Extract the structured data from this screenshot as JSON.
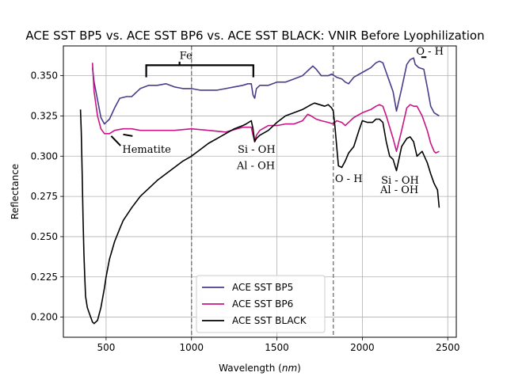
{
  "chart_data": {
    "type": "line",
    "title": "ACE SST BP5 vs. ACE SST BP6 vs. ACE SST BLACK: VNIR Before Lyophilization",
    "xlabel": "Wavelength",
    "xlabel_unit": "nm",
    "ylabel": "Reflectance",
    "xlim": [
      250,
      2550
    ],
    "ylim": [
      0.1875,
      0.3685
    ],
    "xticks": [
      500,
      1000,
      1500,
      2000,
      2500
    ],
    "yticks": [
      0.2,
      0.225,
      0.25,
      0.275,
      0.3,
      0.325,
      0.35
    ],
    "xtick_labels": [
      "500",
      "1000",
      "1500",
      "2000",
      "2500"
    ],
    "ytick_labels": [
      "0.200",
      "0.225",
      "0.250",
      "0.275",
      "0.300",
      "0.325",
      "0.350"
    ],
    "grid": true,
    "legend_position": "lower center",
    "vlines": [
      1000,
      1830
    ],
    "series": [
      {
        "name": "ACE SST BP5",
        "color": "#483d8b",
        "x": [
          420,
          430,
          450,
          470,
          490,
          520,
          550,
          580,
          620,
          650,
          700,
          750,
          800,
          850,
          900,
          950,
          1000,
          1050,
          1100,
          1150,
          1200,
          1250,
          1300,
          1330,
          1350,
          1360,
          1370,
          1380,
          1400,
          1450,
          1500,
          1550,
          1600,
          1650,
          1690,
          1710,
          1730,
          1760,
          1800,
          1820,
          1850,
          1880,
          1900,
          1920,
          1950,
          2000,
          2050,
          2080,
          2100,
          2120,
          2140,
          2160,
          2180,
          2200,
          2230,
          2260,
          2280,
          2300,
          2310,
          2330,
          2360,
          2380,
          2400,
          2420,
          2450
        ],
        "y": [
          0.355,
          0.346,
          0.335,
          0.324,
          0.32,
          0.323,
          0.33,
          0.336,
          0.337,
          0.337,
          0.342,
          0.344,
          0.344,
          0.345,
          0.343,
          0.342,
          0.342,
          0.341,
          0.341,
          0.341,
          0.342,
          0.343,
          0.344,
          0.345,
          0.345,
          0.338,
          0.336,
          0.342,
          0.344,
          0.344,
          0.346,
          0.346,
          0.348,
          0.35,
          0.354,
          0.356,
          0.354,
          0.35,
          0.35,
          0.351,
          0.349,
          0.348,
          0.346,
          0.345,
          0.349,
          0.352,
          0.355,
          0.358,
          0.359,
          0.358,
          0.352,
          0.346,
          0.34,
          0.328,
          0.342,
          0.357,
          0.36,
          0.361,
          0.357,
          0.355,
          0.354,
          0.343,
          0.331,
          0.327,
          0.325
        ]
      },
      {
        "name": "ACE SST BP6",
        "color": "#c71585",
        "x": [
          420,
          430,
          450,
          470,
          490,
          500,
          520,
          550,
          600,
          650,
          700,
          800,
          900,
          1000,
          1100,
          1200,
          1300,
          1350,
          1360,
          1370,
          1380,
          1400,
          1450,
          1500,
          1550,
          1600,
          1650,
          1680,
          1700,
          1730,
          1760,
          1800,
          1830,
          1850,
          1880,
          1900,
          1920,
          1950,
          2000,
          2050,
          2080,
          2100,
          2120,
          2140,
          2160,
          2180,
          2200,
          2230,
          2260,
          2280,
          2300,
          2320,
          2350,
          2380,
          2400,
          2420,
          2430,
          2450
        ],
        "y": [
          0.358,
          0.34,
          0.325,
          0.317,
          0.314,
          0.314,
          0.314,
          0.316,
          0.317,
          0.317,
          0.316,
          0.316,
          0.316,
          0.317,
          0.316,
          0.315,
          0.318,
          0.318,
          0.313,
          0.309,
          0.313,
          0.316,
          0.319,
          0.319,
          0.32,
          0.32,
          0.322,
          0.326,
          0.325,
          0.323,
          0.322,
          0.321,
          0.32,
          0.322,
          0.321,
          0.319,
          0.321,
          0.324,
          0.327,
          0.329,
          0.331,
          0.332,
          0.331,
          0.325,
          0.318,
          0.311,
          0.303,
          0.316,
          0.33,
          0.332,
          0.331,
          0.331,
          0.325,
          0.316,
          0.308,
          0.303,
          0.302,
          0.303
        ]
      },
      {
        "name": "ACE SST BLACK",
        "color": "#000000",
        "x": [
          350,
          355,
          360,
          365,
          370,
          375,
          380,
          390,
          400,
          410,
          420,
          430,
          450,
          470,
          490,
          500,
          520,
          550,
          580,
          600,
          650,
          700,
          750,
          800,
          850,
          900,
          950,
          1000,
          1050,
          1100,
          1150,
          1200,
          1250,
          1300,
          1320,
          1350,
          1360,
          1370,
          1380,
          1400,
          1450,
          1500,
          1550,
          1600,
          1650,
          1700,
          1720,
          1750,
          1780,
          1800,
          1820,
          1830,
          1840,
          1860,
          1880,
          1900,
          1920,
          1950,
          1980,
          2000,
          2030,
          2060,
          2080,
          2100,
          2120,
          2140,
          2160,
          2180,
          2200,
          2230,
          2260,
          2280,
          2300,
          2320,
          2350,
          2380,
          2400,
          2420,
          2440,
          2450
        ],
        "y": [
          0.329,
          0.315,
          0.29,
          0.262,
          0.24,
          0.225,
          0.213,
          0.206,
          0.203,
          0.2,
          0.197,
          0.196,
          0.198,
          0.206,
          0.218,
          0.225,
          0.236,
          0.247,
          0.255,
          0.26,
          0.268,
          0.275,
          0.28,
          0.285,
          0.289,
          0.293,
          0.297,
          0.3,
          0.304,
          0.308,
          0.311,
          0.314,
          0.317,
          0.319,
          0.32,
          0.322,
          0.317,
          0.309,
          0.311,
          0.313,
          0.316,
          0.321,
          0.325,
          0.327,
          0.329,
          0.332,
          0.333,
          0.332,
          0.331,
          0.332,
          0.33,
          0.328,
          0.318,
          0.294,
          0.293,
          0.297,
          0.302,
          0.306,
          0.316,
          0.322,
          0.321,
          0.321,
          0.323,
          0.323,
          0.321,
          0.309,
          0.3,
          0.298,
          0.291,
          0.306,
          0.311,
          0.312,
          0.309,
          0.3,
          0.303,
          0.296,
          0.289,
          0.283,
          0.279,
          0.268
        ]
      }
    ],
    "annotations": [
      {
        "text": "Fe",
        "x": 930,
        "y": 0.3605
      },
      {
        "text": "Hematite",
        "x": 595,
        "y": 0.302
      },
      {
        "text": "Si - OH",
        "x": 1270,
        "y": 0.302
      },
      {
        "text": "Al - OH",
        "x": 1265,
        "y": 0.292
      },
      {
        "text": "O - H",
        "x": 1840,
        "y": 0.284
      },
      {
        "text": "Si - OH",
        "x": 2110,
        "y": 0.283
      },
      {
        "text": "Al - OH",
        "x": 2105,
        "y": 0.277
      },
      {
        "text": "O - H",
        "x": 2315,
        "y": 0.363
      }
    ],
    "bracket": {
      "x_start": 735,
      "x_end": 1362,
      "x_center": 930,
      "y_top": 0.3565,
      "y_bottom": 0.349,
      "y_tick": 0.3587
    },
    "pointers": [
      {
        "x1": 530,
        "y1": 0.3125,
        "x2": 585,
        "y2": 0.3065
      },
      {
        "x1": 655,
        "y1": 0.3125,
        "x2": 600,
        "y2": 0.3135
      },
      {
        "x1": 2345,
        "y1": 0.3615,
        "x2": 2375,
        "y2": 0.3615
      }
    ]
  }
}
